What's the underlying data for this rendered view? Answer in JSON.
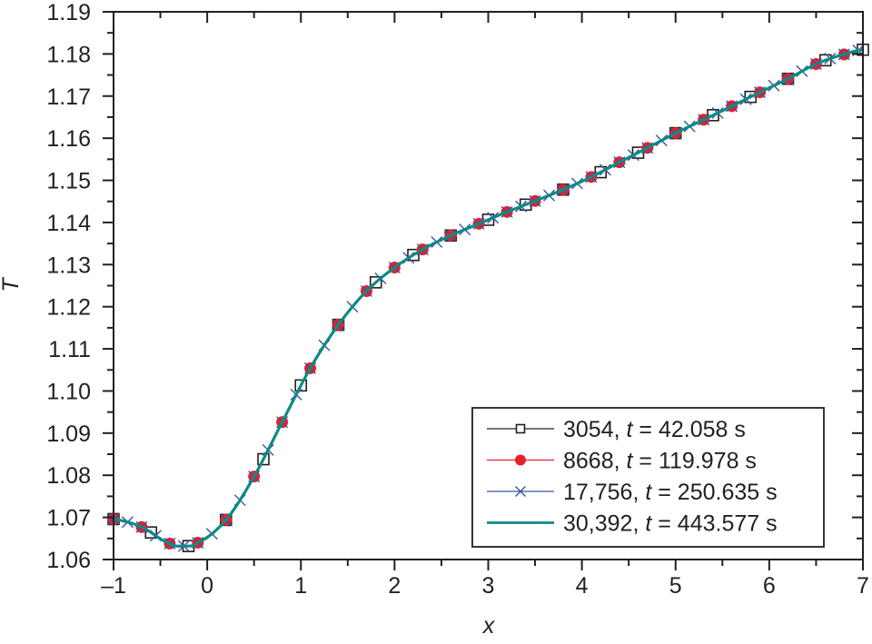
{
  "chart_data": {
    "type": "line",
    "title": "",
    "xlabel": "x",
    "ylabel": "T",
    "xlim": [
      -1,
      7
    ],
    "ylim": [
      1.06,
      1.19
    ],
    "grid": false,
    "legend_position": "lower right",
    "x_ticks": [
      "–1",
      "0",
      "1",
      "2",
      "3",
      "4",
      "5",
      "6",
      "7"
    ],
    "x_tick_values": [
      -1,
      0,
      1,
      2,
      3,
      4,
      5,
      6,
      7
    ],
    "y_ticks": [
      "1.06",
      "1.07",
      "1.08",
      "1.09",
      "1.10",
      "1.11",
      "1.12",
      "1.13",
      "1.14",
      "1.15",
      "1.16",
      "1.17",
      "1.18",
      "1.19"
    ],
    "y_tick_values": [
      1.06,
      1.07,
      1.08,
      1.09,
      1.1,
      1.11,
      1.12,
      1.13,
      1.14,
      1.15,
      1.16,
      1.17,
      1.18,
      1.19
    ],
    "curve": {
      "x": [
        -1.0,
        -0.7,
        -0.4,
        -0.25,
        -0.1,
        0.2,
        0.5,
        0.8,
        1.1,
        1.4,
        1.7,
        2.0,
        2.3,
        2.6,
        2.9,
        3.2,
        3.5,
        3.8,
        4.1,
        4.4,
        4.7,
        5.0,
        5.3,
        5.6,
        5.9,
        6.2,
        6.5,
        6.8,
        7.0
      ],
      "T": [
        1.0696,
        1.0677,
        1.0638,
        1.0632,
        1.064,
        1.0694,
        1.0797,
        1.0926,
        1.1054,
        1.1157,
        1.1237,
        1.1293,
        1.1336,
        1.1369,
        1.1397,
        1.1425,
        1.1451,
        1.1478,
        1.1508,
        1.1543,
        1.1577,
        1.1612,
        1.1644,
        1.1676,
        1.1709,
        1.1741,
        1.1776,
        1.1799,
        1.181
      ]
    },
    "series": [
      {
        "name": "3054, t = 42.058 s",
        "label_main": "3054, ",
        "label_t": "t",
        "label_rest": " = 42.058 s",
        "color": "#231f20",
        "marker": "open-square",
        "marker_spacing": 0.4,
        "marker_offset": -1.0
      },
      {
        "name": "8668, t = 119.978 s",
        "label_main": "8668, ",
        "label_t": "t",
        "label_rest": " = 119.978 s",
        "color": "#e8202a",
        "marker": "filled-circle",
        "marker_spacing": 0.3,
        "marker_offset": -1.0
      },
      {
        "name": "17,756, t = 250.635 s",
        "label_main": "17,756, ",
        "label_t": "t",
        "label_rest": " = 250.635 s",
        "color": "#3a54a4",
        "marker": "x-cross",
        "marker_spacing": 0.15,
        "marker_offset": -1.0
      },
      {
        "name": "30,392, t = 443.577 s",
        "label_main": "30,392, ",
        "label_t": "t",
        "label_rest": " = 443.577 s",
        "color": "#0e8a83",
        "marker": "none",
        "marker_spacing": 0,
        "marker_offset": 0
      }
    ]
  }
}
